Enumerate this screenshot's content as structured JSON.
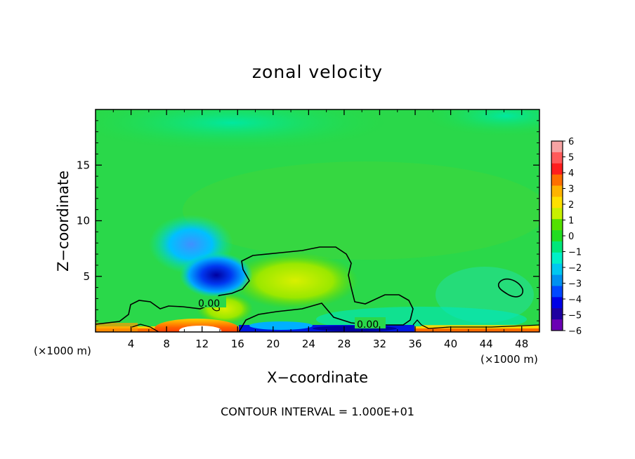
{
  "chart_data": {
    "type": "heatmap",
    "title": "zonal velocity",
    "xlabel": "X−coordinate",
    "ylabel": "Z−coordinate",
    "x_unit": "(×1000 m)",
    "y_unit": "(×1000 m)",
    "xlim": [
      0,
      50
    ],
    "ylim": [
      0,
      20
    ],
    "x_ticks": [
      4,
      8,
      12,
      16,
      20,
      24,
      28,
      32,
      36,
      40,
      44,
      48
    ],
    "y_ticks": [
      5,
      10,
      15
    ],
    "colorbar": {
      "levels": [
        6,
        5,
        4,
        3,
        2,
        1,
        0,
        -1,
        -2,
        -3,
        -4,
        -5,
        -6
      ],
      "labels": [
        "6",
        "5",
        "4",
        "3",
        "2",
        "1",
        "0",
        "−1",
        "−2",
        "−3",
        "−4",
        "−5",
        "−6"
      ],
      "colors": [
        "#f6a3a3",
        "#ff5a5a",
        "#ff1e1e",
        "#ff6f00",
        "#ffb300",
        "#ffe000",
        "#c8f000",
        "#53e000",
        "#22dd22",
        "#00e67a",
        "#00f0c8",
        "#00c8f0",
        "#0091f0",
        "#0048ff",
        "#0000e6",
        "#1e00a0",
        "#6a00b4"
      ]
    },
    "features": [
      {
        "kind": "jet_core",
        "x": 13,
        "z": 5,
        "value": -5
      },
      {
        "kind": "negative_region",
        "x": 11,
        "z": 8,
        "value": -3
      },
      {
        "kind": "positive_region",
        "x": 12,
        "z": 0.5,
        "value": 5
      },
      {
        "kind": "negative_region",
        "x": 32,
        "z": 0.3,
        "value": -5
      },
      {
        "kind": "positive_region",
        "x": 22,
        "z": 4,
        "value": 2
      }
    ],
    "contours": [
      {
        "level": 0.0,
        "label": "0.00"
      },
      {
        "level": 0.0,
        "label": "0.00"
      }
    ],
    "annotation": "CONTOUR INTERVAL = 1.000E+01"
  }
}
